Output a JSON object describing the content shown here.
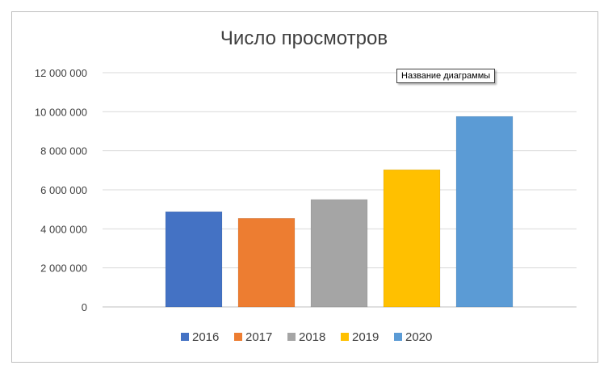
{
  "chart_data": {
    "type": "bar",
    "title": "Число просмотров",
    "categories": [
      "2016",
      "2017",
      "2018",
      "2019",
      "2020"
    ],
    "series": [
      {
        "name": "2016",
        "value": 4880000,
        "color": "#4472C4"
      },
      {
        "name": "2017",
        "value": 4540000,
        "color": "#ED7D31"
      },
      {
        "name": "2018",
        "value": 5500000,
        "color": "#A5A5A5"
      },
      {
        "name": "2019",
        "value": 7030000,
        "color": "#FFC000"
      },
      {
        "name": "2020",
        "value": 9760000,
        "color": "#5B9BD5"
      }
    ],
    "ylim": [
      0,
      12000000
    ],
    "yticks": [
      "0",
      "2 000 000",
      "4 000 000",
      "6 000 000",
      "8 000 000",
      "10 000 000",
      "12 000 000"
    ],
    "grid": true,
    "legend_position": "bottom"
  },
  "tooltip": "Название диаграммы"
}
